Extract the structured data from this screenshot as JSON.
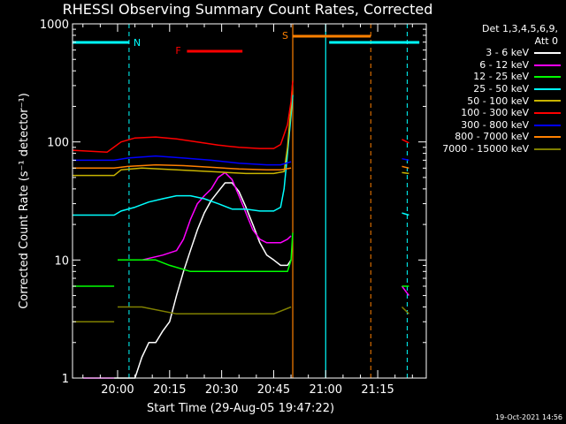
{
  "chart_data": {
    "type": "line",
    "title": "RHESSI Observing Summary Count Rates, Corrected",
    "xlabel": "Start Time (29-Aug-05 19:47:22)",
    "ylabel": "Corrected Count Rate (s⁻¹ detector⁻¹)",
    "yscale": "log",
    "ylim": [
      1,
      1000
    ],
    "xlim_minutes_after_1947": [
      0,
      102
    ],
    "x_ticks": [
      {
        "label": "20:00",
        "t": 13
      },
      {
        "label": "20:15",
        "t": 28
      },
      {
        "label": "20:30",
        "t": 43
      },
      {
        "label": "20:45",
        "t": 58
      },
      {
        "label": "21:00",
        "t": 73
      },
      {
        "label": "21:15",
        "t": 88
      }
    ],
    "y_ticks": [
      {
        "label": "1",
        "v": 1
      },
      {
        "label": "10",
        "v": 10
      },
      {
        "label": "100",
        "v": 100
      },
      {
        "label": "1000",
        "v": 1000
      }
    ],
    "legend_header": [
      "Det 1,3,4,5,6,9,",
      "Att 0"
    ],
    "series": [
      {
        "name": "3 - 6 keV",
        "color": "#ffffff",
        "segments": [
          [
            [
              12,
              1
            ],
            [
              18,
              1
            ],
            [
              20,
              1.5
            ],
            [
              22,
              2
            ],
            [
              24,
              2
            ],
            [
              26,
              2.5
            ],
            [
              28,
              3
            ],
            [
              30,
              5
            ],
            [
              32,
              8
            ],
            [
              34,
              12
            ],
            [
              36,
              18
            ],
            [
              38,
              25
            ],
            [
              40,
              32
            ],
            [
              42,
              38
            ],
            [
              44,
              45
            ],
            [
              46,
              45
            ],
            [
              48,
              38
            ],
            [
              50,
              28
            ],
            [
              52,
              20
            ],
            [
              54,
              14
            ],
            [
              56,
              11
            ],
            [
              58,
              10
            ],
            [
              60,
              9
            ],
            [
              62,
              9
            ],
            [
              63,
              10
            ]
          ]
        ]
      },
      {
        "name": "6 - 12 keV",
        "color": "#ff00ff",
        "segments": [
          [
            [
              3,
              1
            ],
            [
              12,
              1
            ]
          ],
          [
            [
              13,
              10
            ],
            [
              20,
              10
            ],
            [
              26,
              11
            ],
            [
              30,
              12
            ],
            [
              32,
              15
            ],
            [
              34,
              22
            ],
            [
              36,
              30
            ],
            [
              38,
              35
            ],
            [
              40,
              40
            ],
            [
              42,
              50
            ],
            [
              44,
              55
            ],
            [
              46,
              48
            ],
            [
              48,
              35
            ],
            [
              50,
              25
            ],
            [
              52,
              18
            ],
            [
              54,
              15
            ],
            [
              56,
              14
            ],
            [
              58,
              14
            ],
            [
              60,
              14
            ],
            [
              62,
              15
            ],
            [
              63,
              16
            ]
          ],
          [
            [
              95,
              6
            ],
            [
              97,
              5
            ]
          ]
        ]
      },
      {
        "name": "12 - 25 keV",
        "color": "#00ff00",
        "segments": [
          [
            [
              0,
              6
            ],
            [
              12,
              6
            ]
          ],
          [
            [
              13,
              10
            ],
            [
              18,
              10
            ],
            [
              24,
              10
            ],
            [
              28,
              9
            ],
            [
              34,
              8
            ],
            [
              40,
              8
            ],
            [
              46,
              8
            ],
            [
              52,
              8
            ],
            [
              58,
              8
            ],
            [
              62,
              8
            ],
            [
              63,
              10
            ],
            [
              63.5,
              17
            ]
          ],
          [
            [
              95,
              6
            ],
            [
              97,
              6
            ]
          ]
        ]
      },
      {
        "name": "25 - 50 keV",
        "color": "#00ffff",
        "segments": [
          [
            [
              0,
              24
            ],
            [
              12,
              24
            ],
            [
              14,
              26
            ],
            [
              18,
              28
            ],
            [
              22,
              31
            ],
            [
              26,
              33
            ],
            [
              30,
              35
            ],
            [
              34,
              35
            ],
            [
              38,
              33
            ],
            [
              42,
              30
            ],
            [
              46,
              27
            ],
            [
              50,
              27
            ],
            [
              54,
              26
            ],
            [
              58,
              26
            ],
            [
              60,
              28
            ],
            [
              61,
              40
            ],
            [
              62,
              80
            ],
            [
              63,
              170
            ],
            [
              63.5,
              250
            ]
          ],
          [
            [
              95,
              25
            ],
            [
              97,
              24
            ]
          ]
        ]
      },
      {
        "name": "50 - 100 keV",
        "color": "#c8b400",
        "segments": [
          [
            [
              0,
              52
            ],
            [
              12,
              52
            ],
            [
              14,
              58
            ],
            [
              20,
              60
            ],
            [
              30,
              58
            ],
            [
              40,
              56
            ],
            [
              50,
              54
            ],
            [
              58,
              54
            ],
            [
              61,
              56
            ],
            [
              62,
              90
            ],
            [
              63,
              200
            ],
            [
              63.5,
              330
            ]
          ],
          [
            [
              95,
              55
            ],
            [
              97,
              54
            ]
          ]
        ]
      },
      {
        "name": "100 - 300 keV",
        "color": "#ff0000",
        "segments": [
          [
            [
              0,
              85
            ],
            [
              10,
              82
            ],
            [
              14,
              100
            ],
            [
              18,
              108
            ],
            [
              24,
              110
            ],
            [
              30,
              106
            ],
            [
              36,
              100
            ],
            [
              42,
              94
            ],
            [
              48,
              90
            ],
            [
              54,
              88
            ],
            [
              58,
              88
            ],
            [
              60,
              95
            ],
            [
              62,
              140
            ],
            [
              63,
              220
            ],
            [
              63.5,
              330
            ]
          ],
          [
            [
              95,
              105
            ],
            [
              97,
              98
            ]
          ]
        ]
      },
      {
        "name": "300 - 800 keV",
        "color": "#0000ff",
        "segments": [
          [
            [
              0,
              70
            ],
            [
              12,
              70
            ],
            [
              16,
              73
            ],
            [
              24,
              76
            ],
            [
              32,
              73
            ],
            [
              40,
              70
            ],
            [
              48,
              66
            ],
            [
              56,
              64
            ],
            [
              60,
              64
            ],
            [
              63,
              68
            ]
          ],
          [
            [
              95,
              72
            ],
            [
              97,
              70
            ]
          ]
        ]
      },
      {
        "name": "800 - 7000 keV",
        "color": "#ff8000",
        "segments": [
          [
            [
              0,
              60
            ],
            [
              12,
              60
            ],
            [
              16,
              62
            ],
            [
              24,
              64
            ],
            [
              32,
              63
            ],
            [
              40,
              61
            ],
            [
              48,
              59
            ],
            [
              56,
              58
            ],
            [
              60,
              58
            ],
            [
              63,
              60
            ]
          ],
          [
            [
              95,
              62
            ],
            [
              97,
              60
            ]
          ]
        ]
      },
      {
        "name": "7000 - 15000 keV",
        "color": "#808000",
        "segments": [
          [
            [
              0,
              3
            ],
            [
              12,
              3
            ]
          ],
          [
            [
              13,
              4
            ],
            [
              20,
              4
            ],
            [
              30,
              3.5
            ],
            [
              40,
              3.5
            ],
            [
              50,
              3.5
            ],
            [
              58,
              3.5
            ],
            [
              63,
              4
            ]
          ],
          [
            [
              95,
              4
            ],
            [
              97,
              3.5
            ]
          ]
        ]
      }
    ],
    "annotations": {
      "cyan_bars": [
        {
          "label": "N",
          "t0": 0,
          "t1": 16.3
        },
        {
          "label": "",
          "t0": 74,
          "t1": 100
        }
      ],
      "cyan_solid_lines_t": [
        73
      ],
      "cyan_dashed_lines_t": [
        16.3,
        96.5
      ],
      "orange_bar": {
        "label": "S",
        "t0": 63.5,
        "t1": 86
      },
      "orange_solid_lines_t": [
        63.5
      ],
      "orange_dashed_lines_t": [
        86
      ],
      "red_bar": {
        "label": "F",
        "t0": 33,
        "t1": 49
      }
    }
  },
  "footer_stamp": "19-Oct-2021 14:56"
}
